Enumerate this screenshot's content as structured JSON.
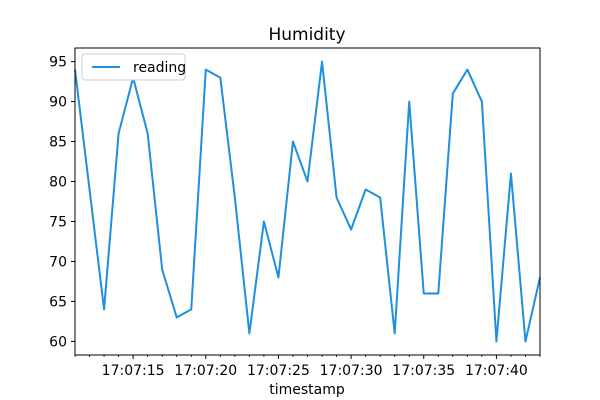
{
  "chart_data": {
    "type": "line",
    "title": "Humidity",
    "xlabel": "timestamp",
    "ylabel": "",
    "x_tick_labels": [
      "17:07:15",
      "17:07:20",
      "17:07:25",
      "17:07:30",
      "17:07:35",
      "17:07:40"
    ],
    "x_tick_seconds": [
      15,
      20,
      25,
      30,
      35,
      40
    ],
    "xlim": [
      11,
      43
    ],
    "y_ticks": [
      60,
      65,
      70,
      75,
      80,
      85,
      90,
      95
    ],
    "ylim": [
      58.3,
      96.7
    ],
    "grid": false,
    "legend_position": "top-left",
    "series": [
      {
        "name": "reading",
        "color": "#1f8fe0",
        "x_seconds": [
          11,
          12,
          13,
          14,
          15,
          16,
          17,
          18,
          19,
          20,
          21,
          22,
          23,
          24,
          25,
          26,
          27,
          28,
          29,
          30,
          31,
          32,
          33,
          34,
          35,
          36,
          37,
          38,
          39,
          40,
          41,
          42,
          43
        ],
        "values": [
          94,
          79,
          64,
          86,
          93,
          86,
          69,
          63,
          64,
          94,
          93,
          78,
          61,
          75,
          68,
          85,
          80,
          95,
          78,
          74,
          79,
          78,
          61,
          90,
          66,
          66,
          91,
          94,
          90,
          60,
          81,
          60,
          68
        ]
      }
    ]
  }
}
